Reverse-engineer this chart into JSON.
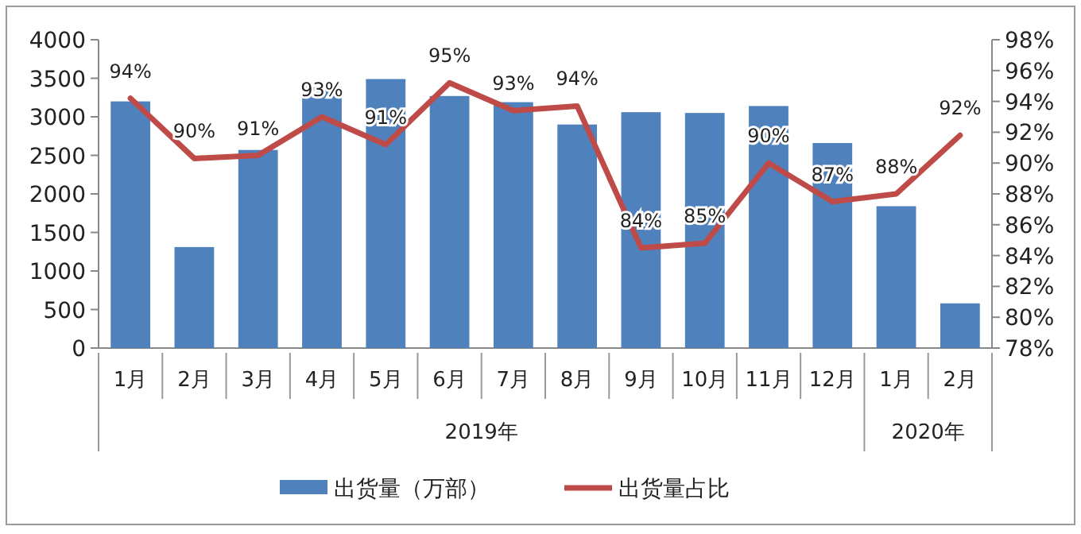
{
  "chart_data": {
    "type": "bar",
    "categories": [
      "1月",
      "2月",
      "3月",
      "4月",
      "5月",
      "6月",
      "7月",
      "8月",
      "9月",
      "10月",
      "11月",
      "12月",
      "1月",
      "2月"
    ],
    "series": [
      {
        "name": "出货量（万部）",
        "color": "#4f81bd",
        "values": [
          3200,
          1310,
          2570,
          3390,
          3490,
          3270,
          3190,
          2900,
          3060,
          3050,
          3140,
          2660,
          1840,
          580
        ]
      },
      {
        "name": "出货量占比",
        "type": "line",
        "axis": "y2",
        "color": "#be4b48",
        "values": [
          94.2,
          90.3,
          90.5,
          93.0,
          91.2,
          95.2,
          93.4,
          93.7,
          84.5,
          84.8,
          90.0,
          87.5,
          88.0,
          91.8
        ],
        "value_labels": [
          "94%",
          "90%",
          "91%",
          "93%",
          "91%",
          "95%",
          "93%",
          "94%",
          "84%",
          "85%",
          "90%",
          "87%",
          "88%",
          "92%"
        ]
      }
    ],
    "ylim": [
      0,
      4000
    ],
    "yticks": [
      0,
      500,
      1000,
      1500,
      2000,
      2500,
      3000,
      3500,
      4000
    ],
    "y2lim": [
      78,
      98
    ],
    "y2ticks": [
      {
        "value": 78,
        "label": "78%"
      },
      {
        "value": 80,
        "label": "80%"
      },
      {
        "value": 82,
        "label": "82%"
      },
      {
        "value": 84,
        "label": "84%"
      },
      {
        "value": 86,
        "label": "86%"
      },
      {
        "value": 88,
        "label": "88%"
      },
      {
        "value": 90,
        "label": "90%"
      },
      {
        "value": 92,
        "label": "92%"
      },
      {
        "value": 94,
        "label": "94%"
      },
      {
        "value": 96,
        "label": "96%"
      },
      {
        "value": 98,
        "label": "98%"
      }
    ],
    "annotations": [
      "2019年",
      "2020年"
    ],
    "grid": false,
    "legend": "bottom",
    "marker": "none",
    "line_style": "solid"
  }
}
